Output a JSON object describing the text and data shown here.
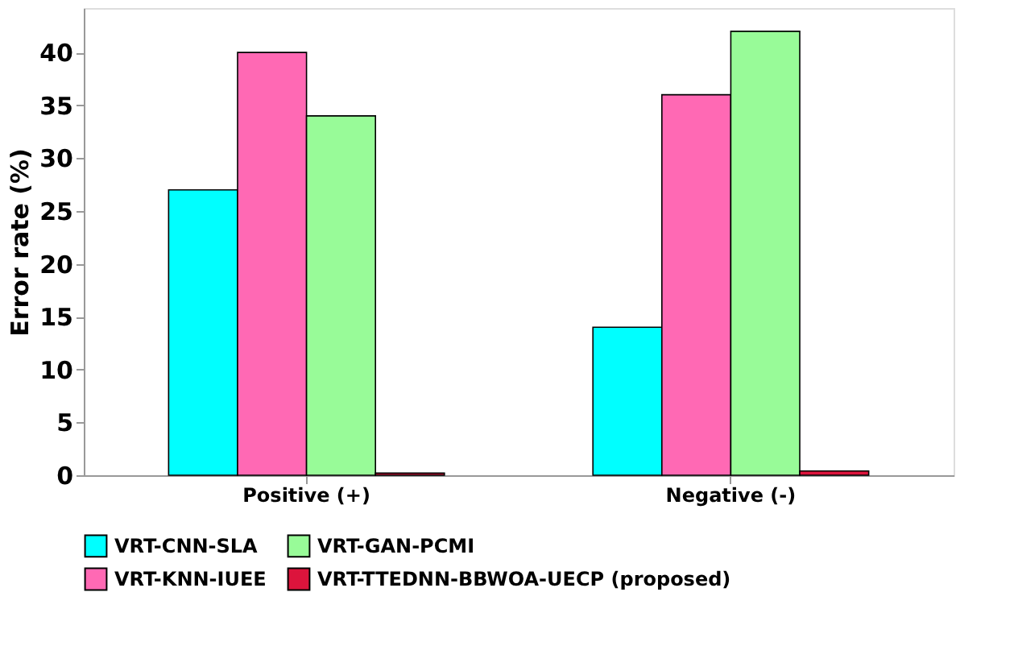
{
  "chart_data": {
    "type": "bar",
    "ylabel": "Error rate (%)",
    "categories": [
      "Positive (+)",
      "Negative (-)"
    ],
    "series": [
      {
        "name": "VRT-CNN-SLA",
        "color": "#00ffff",
        "values": [
          27,
          14
        ]
      },
      {
        "name": "VRT-KNN-IUEE",
        "color": "#ff69b4",
        "values": [
          40,
          36
        ]
      },
      {
        "name": "VRT-GAN-PCMI",
        "color": "#98fb98",
        "values": [
          34,
          42
        ]
      },
      {
        "name": "VRT-TTEDNN-BBWOA-UECP (proposed)",
        "color": "#dc143c",
        "values": [
          0.2,
          0.4
        ]
      }
    ],
    "ylim": [
      0,
      44.2
    ],
    "yticks": [
      0,
      5,
      10,
      15,
      20,
      25,
      30,
      35,
      40
    ],
    "grid": false,
    "legend": "bottom"
  }
}
